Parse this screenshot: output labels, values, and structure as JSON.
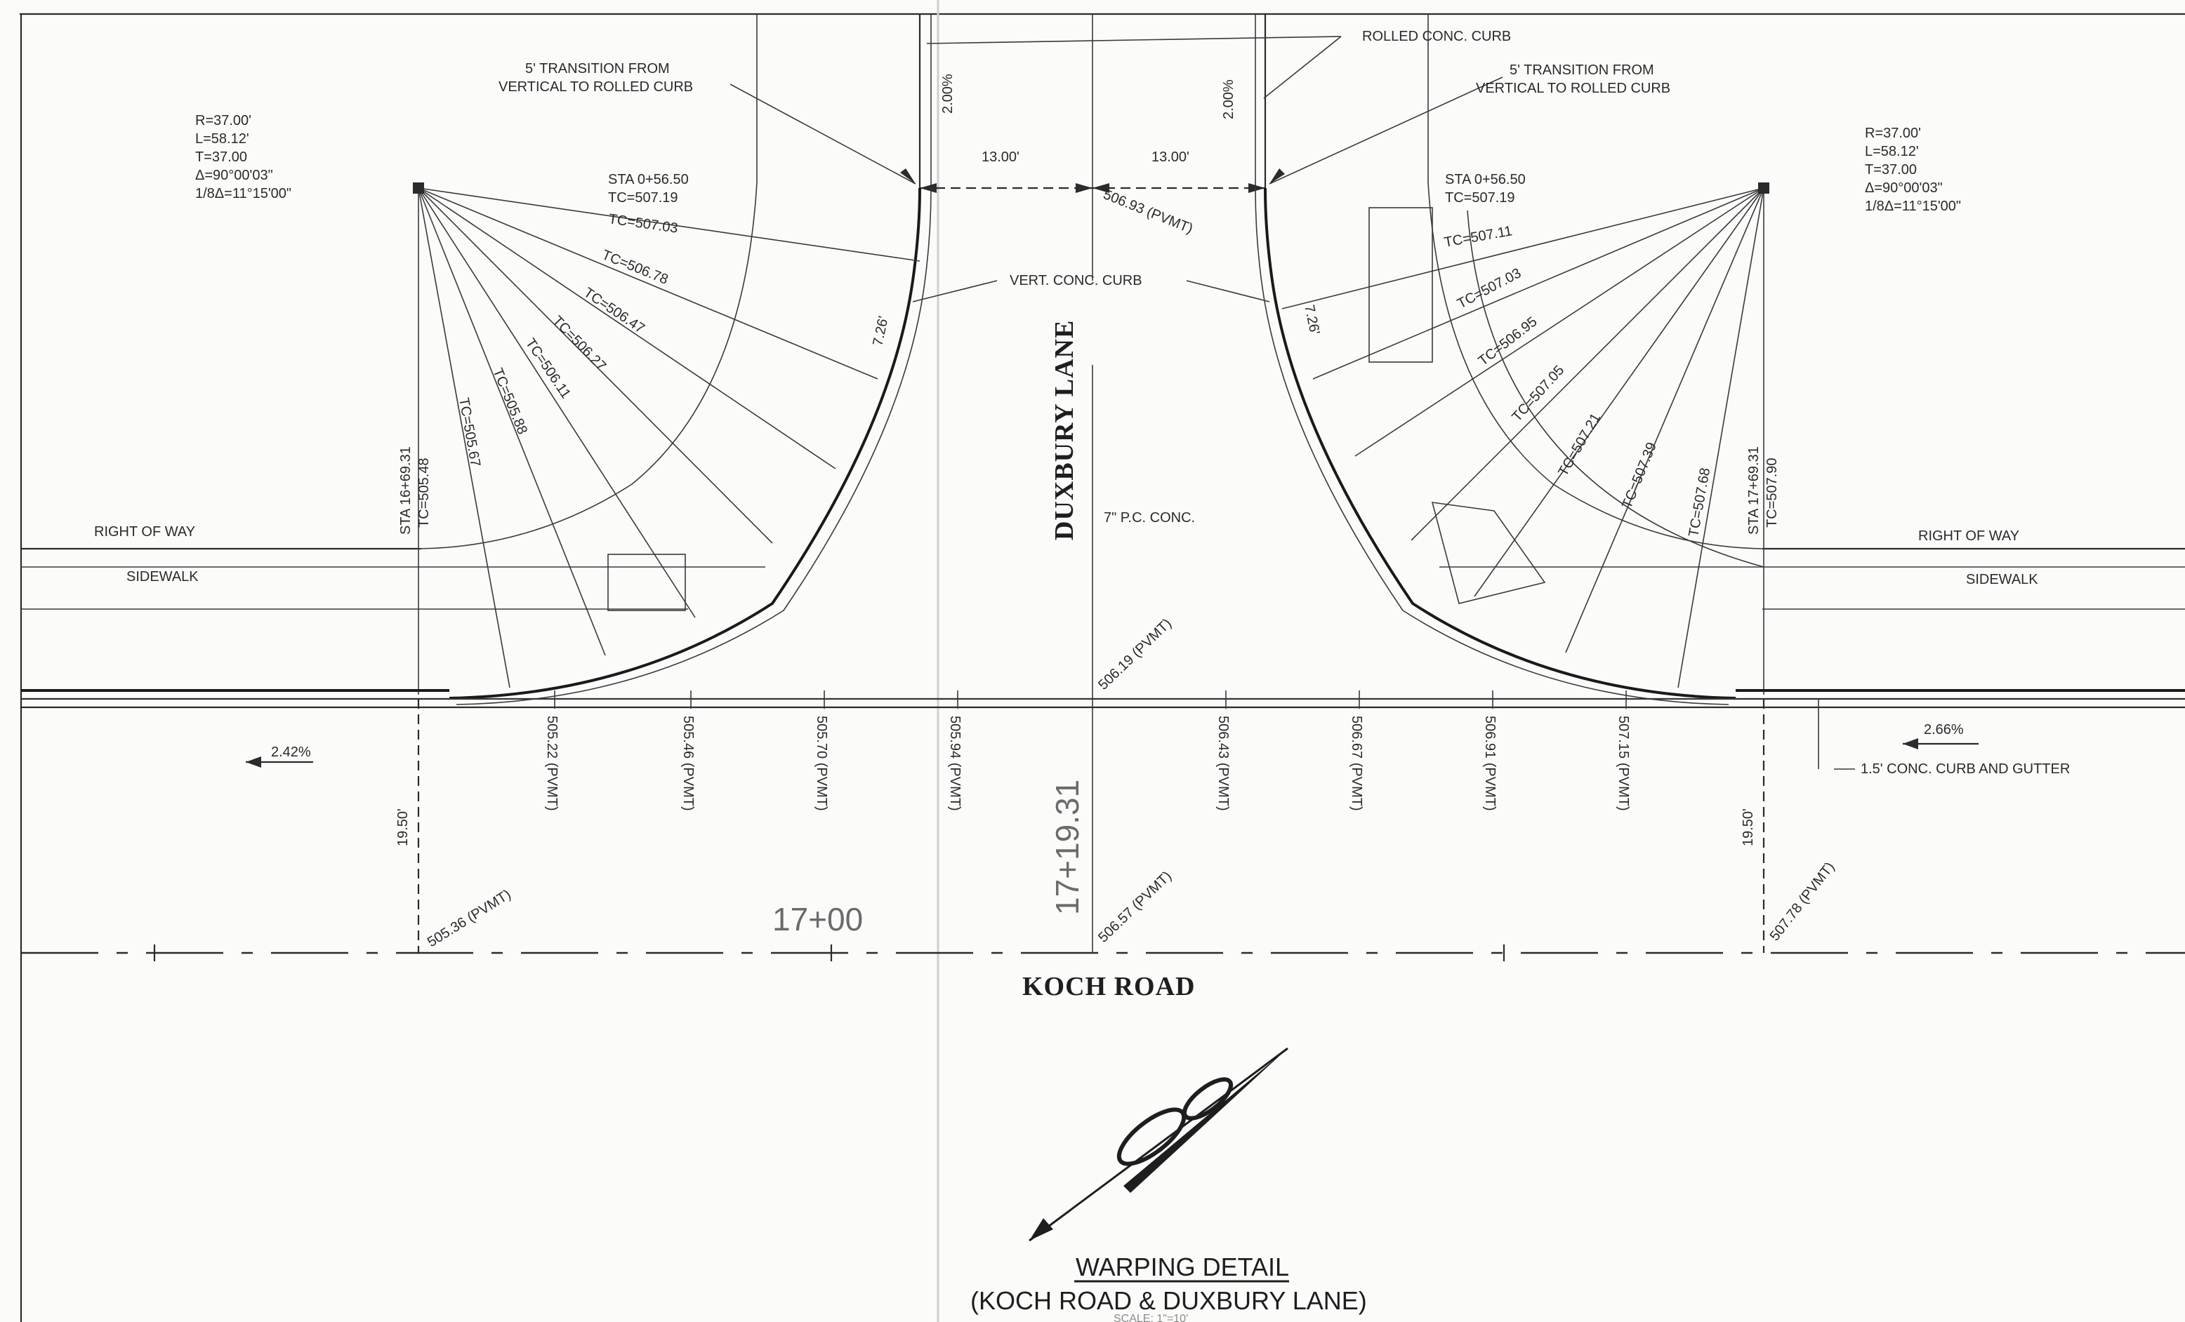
{
  "title": {
    "main": "WARPING DETAIL",
    "sub": "(KOCH ROAD & DUXBURY LANE)",
    "scale": "SCALE: 1\"=10'"
  },
  "roads": {
    "main": "KOCH ROAD",
    "side": "DUXBURY LANE",
    "side_material": "7\" P.C. CONC."
  },
  "labels": {
    "row_left": "RIGHT OF WAY",
    "row_right": "RIGHT OF WAY",
    "sidewalk_left": "SIDEWALK",
    "sidewalk_right": "SIDEWALK",
    "rolled_curb": "ROLLED CONC. CURB",
    "transition_left_1": "5' TRANSITION FROM",
    "transition_left_2": "VERTICAL TO ROLLED CURB",
    "transition_right_1": "5' TRANSITION FROM",
    "transition_right_2": "VERTICAL TO ROLLED CURB",
    "vert_curb": "VERT. CONC. CURB",
    "curb_gutter": "1.5' CONC. CURB AND GUTTER",
    "slope_left": "2.42%",
    "slope_right": "2.66%",
    "station_big_1": "17+00",
    "station_big_2": "17+19.31"
  },
  "curve_left": [
    "R=37.00'",
    "L=58.12'",
    "T=37.00",
    "Δ=90°00'03\"",
    "1/8Δ=11°15'00\""
  ],
  "curve_right": [
    "R=37.00'",
    "L=58.12'",
    "T=37.00",
    "Δ=90°00'03\"",
    "1/8Δ=11°15'00\""
  ],
  "dims": {
    "w_left": "13.00'",
    "w_right": "13.00'",
    "cross_left": "2.00%",
    "cross_right": "2.00%",
    "off_left": "7.26'",
    "off_right": "7.26'",
    "setback_left": "19.50'",
    "setback_right": "19.50'"
  },
  "sta_top_left": {
    "sta": "STA 0+56.50",
    "tc": "TC=507.19"
  },
  "sta_top_right": {
    "sta": "STA 0+56.50",
    "tc": "TC=507.19"
  },
  "sta_left_pc": {
    "sta": "STA 16+69.31",
    "tc": "TC=505.48"
  },
  "sta_right_pc": {
    "sta": "STA 17+69.31",
    "tc": "TC=507.90"
  },
  "tc_left": [
    "TC=507.03",
    "TC=506.78",
    "TC=506.47",
    "TC=506.27",
    "TC=506.11",
    "TC=505.88",
    "TC=505.67"
  ],
  "tc_right": [
    "TC=507.11",
    "TC=507.03",
    "TC=506.95",
    "TC=507.05",
    "TC=507.21",
    "TC=507.39",
    "TC=507.68"
  ],
  "pvmt_row": [
    "505.22 (PVMT)",
    "505.46 (PVMT)",
    "505.70 (PVMT)",
    "505.94 (PVMT)",
    "506.43 (PVMT)",
    "506.67 (PVMT)",
    "506.91 (PVMT)",
    "507.15 (PVMT)"
  ],
  "pvmt_other": {
    "top_center": "506.93 (PVMT)",
    "mid_center": "506.19 (PVMT)",
    "cl_center": "506.57 (PVMT)",
    "cl_left": "505.36 (PVMT)",
    "cl_right": "507.78 (PVMT)"
  }
}
